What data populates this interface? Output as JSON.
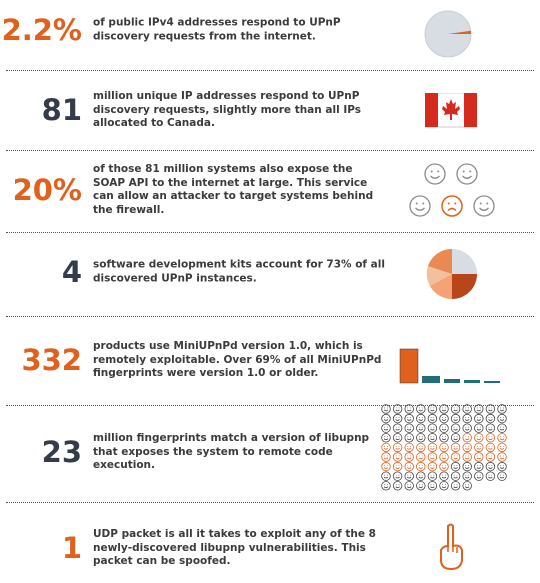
{
  "rows": [
    {
      "stat": "2.2%",
      "text": [
        "of public IPv4 addresses respond to UPnP",
        "discovery requests from the internet."
      ]
    },
    {
      "stat": "81",
      "text": [
        "million unique IP addresses respond to UPnP",
        "discovery requests, slightly more than all IPs",
        "allocated to Canada."
      ]
    },
    {
      "stat": "20%",
      "text": [
        "of those 81 million systems also expose the",
        "SOAP API to the internet at large. This service",
        "can allow an attacker to target systems behind",
        "the firewall."
      ]
    },
    {
      "stat": "4",
      "text": [
        "software development kits account for 73% of all",
        "discovered UPnP instances."
      ]
    },
    {
      "stat": "332",
      "text": [
        "products use MiniUPnPd version 1.0, which is",
        "remotely exploitable. Over 69% of all MiniUPnPd",
        "fingerprints were version 1.0 or older."
      ]
    },
    {
      "stat": "23",
      "text": [
        "million fingerprints match a version of libupnp",
        "that exposes the system to remote code",
        "execution."
      ]
    },
    {
      "stat": "1",
      "text": [
        "UDP packet is all it takes to exploit any of the 8",
        "newly-discovered libupnp vulnerabilities. This",
        "packet can be spoofed."
      ]
    }
  ]
}
